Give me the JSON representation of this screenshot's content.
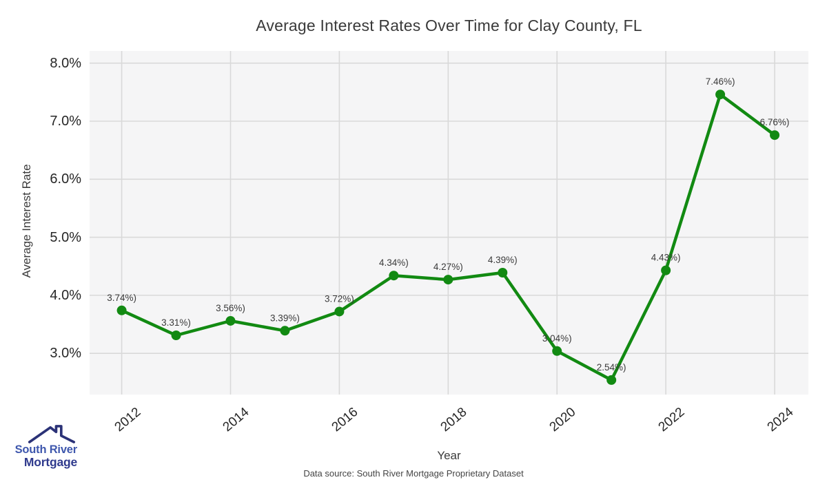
{
  "chart_data": {
    "type": "line",
    "title": "Average Interest Rates Over Time for Clay County, FL",
    "xlabel": "Year",
    "ylabel": "Average Interest Rate",
    "x": [
      2012,
      2013,
      2014,
      2015,
      2016,
      2017,
      2018,
      2019,
      2020,
      2021,
      2022,
      2023,
      2024
    ],
    "values": [
      3.74,
      3.31,
      3.56,
      3.39,
      3.72,
      4.34,
      4.27,
      4.39,
      3.04,
      2.54,
      4.43,
      7.46,
      6.76
    ],
    "point_labels": [
      "3.74%)",
      "3.31%)",
      "3.56%)",
      "3.39%)",
      "3.72%)",
      "4.34%)",
      "4.27%)",
      "4.39%)",
      "3.04%)",
      "2.54%)",
      "4.43%)",
      "7.46%)",
      "6.76%)"
    ],
    "x_ticks": [
      2012,
      2014,
      2016,
      2018,
      2020,
      2022,
      2024
    ],
    "y_ticks": [
      3,
      4,
      5,
      6,
      7,
      8
    ],
    "y_tick_labels": [
      "3.0%",
      "4.0%",
      "5.0%",
      "6.0%",
      "7.0%",
      "8.0%"
    ],
    "xlim": [
      2011.41,
      2024.62
    ],
    "ylim": [
      2.29,
      8.21
    ],
    "grid": true,
    "legend": false,
    "colors": {
      "line": "#128a12",
      "marker": "#128a12",
      "grid": "#d9d9d9",
      "plot_bg": "#f5f5f6",
      "label_text": "#3a3a3a"
    }
  },
  "footer": {
    "source": "Data source: South River Mortgage Proprietary Dataset"
  },
  "logo": {
    "line1": "South River",
    "line2": "Mortgage",
    "icon": "house-roof",
    "color1": "#3e57ad",
    "color2": "#2f3a8d"
  }
}
